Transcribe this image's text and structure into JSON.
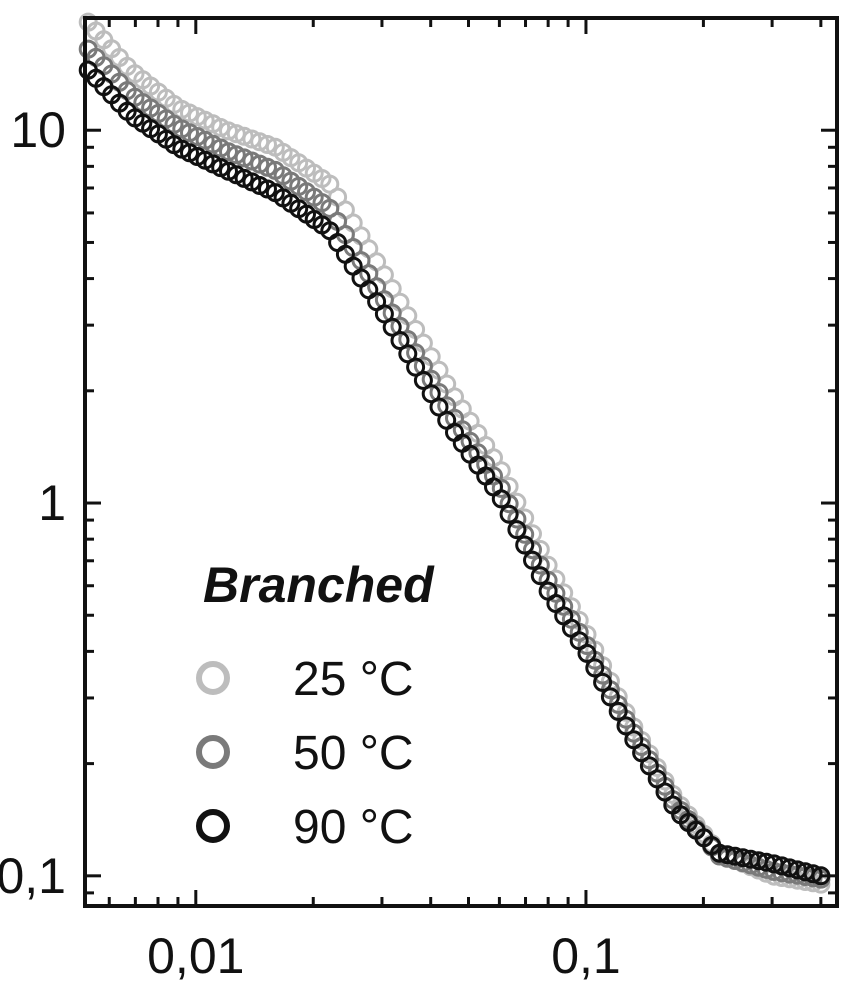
{
  "chart_data": {
    "type": "scatter",
    "x_scale": "log",
    "y_scale": "log",
    "xlim": [
      0.0052,
      0.44
    ],
    "ylim": [
      0.083,
      20
    ],
    "x_ticks": [
      {
        "value": 0.01,
        "label": "0,01"
      },
      {
        "value": 0.1,
        "label": "0,1"
      }
    ],
    "y_ticks": [
      {
        "value": 0.1,
        "label": "0,1"
      },
      {
        "value": 1,
        "label": "1"
      },
      {
        "value": 10,
        "label": "10"
      }
    ],
    "grid": false,
    "legend": {
      "title": "Branched",
      "placement": "bottom-left"
    },
    "series": [
      {
        "name": "25 °C",
        "color": "#bdbdbd",
        "points": [
          [
            0.0053,
            19.5
          ],
          [
            0.0068,
            14.5
          ],
          [
            0.009,
            11.5
          ],
          [
            0.012,
            10.0
          ],
          [
            0.016,
            9.0
          ],
          [
            0.022,
            7.2
          ],
          [
            0.03,
            4.2
          ],
          [
            0.045,
            2.0
          ],
          [
            0.06,
            1.25
          ],
          [
            0.08,
            0.68
          ],
          [
            0.1,
            0.45
          ],
          [
            0.13,
            0.26
          ],
          [
            0.17,
            0.16
          ],
          [
            0.22,
            0.115
          ],
          [
            0.3,
            0.1
          ],
          [
            0.4,
            0.095
          ]
        ]
      },
      {
        "name": "50 °C",
        "color": "#7a7a7a",
        "points": [
          [
            0.0053,
            16.5
          ],
          [
            0.0068,
            12.5
          ],
          [
            0.009,
            10.2
          ],
          [
            0.012,
            8.8
          ],
          [
            0.016,
            7.8
          ],
          [
            0.022,
            6.2
          ],
          [
            0.03,
            3.6
          ],
          [
            0.045,
            1.75
          ],
          [
            0.06,
            1.12
          ],
          [
            0.08,
            0.62
          ],
          [
            0.1,
            0.42
          ],
          [
            0.13,
            0.25
          ],
          [
            0.17,
            0.155
          ],
          [
            0.22,
            0.113
          ],
          [
            0.3,
            0.103
          ],
          [
            0.4,
            0.098
          ]
        ]
      },
      {
        "name": "90 °C",
        "color": "#111111",
        "points": [
          [
            0.0053,
            14.5
          ],
          [
            0.0068,
            11.0
          ],
          [
            0.009,
            9.0
          ],
          [
            0.012,
            7.8
          ],
          [
            0.016,
            6.8
          ],
          [
            0.022,
            5.4
          ],
          [
            0.03,
            3.3
          ],
          [
            0.045,
            1.6
          ],
          [
            0.06,
            1.05
          ],
          [
            0.08,
            0.58
          ],
          [
            0.1,
            0.4
          ],
          [
            0.13,
            0.24
          ],
          [
            0.17,
            0.15
          ],
          [
            0.22,
            0.115
          ],
          [
            0.3,
            0.108
          ],
          [
            0.4,
            0.1
          ]
        ]
      }
    ]
  }
}
